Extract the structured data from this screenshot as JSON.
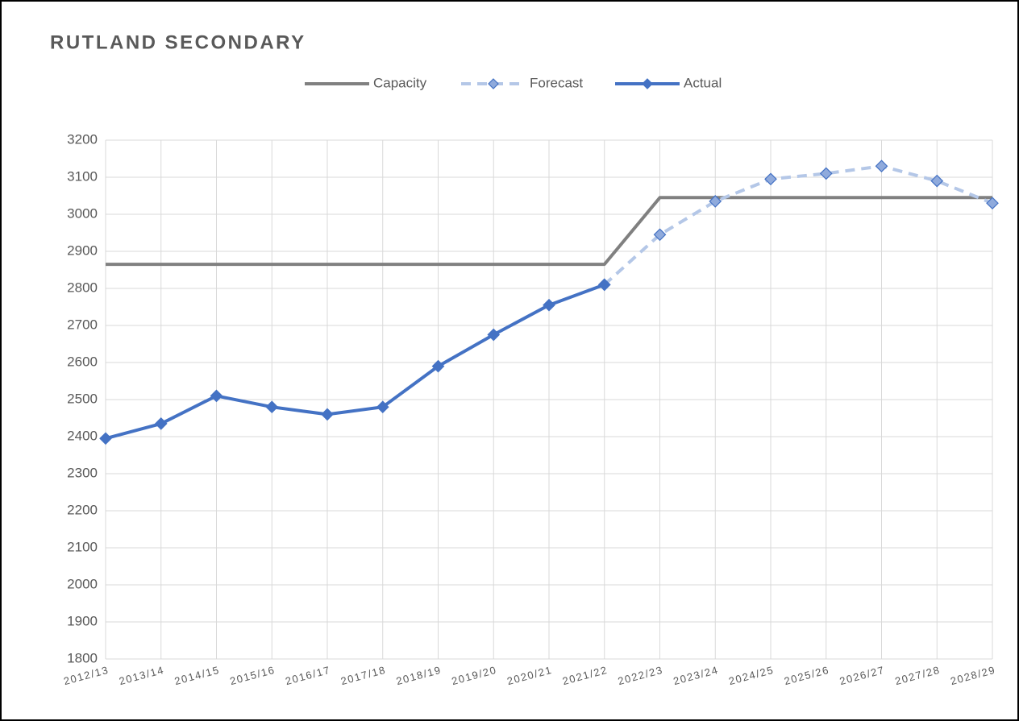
{
  "chart_data": {
    "type": "line",
    "title": "RUTLAND SECONDARY",
    "categories": [
      "2012/13",
      "2013/14",
      "2014/15",
      "2015/16",
      "2016/17",
      "2017/18",
      "2018/19",
      "2019/20",
      "2020/21",
      "2021/22",
      "2022/23",
      "2023/24",
      "2024/25",
      "2025/26",
      "2026/27",
      "2027/28",
      "2028/29"
    ],
    "series": [
      {
        "name": "Capacity",
        "color": "#808080",
        "dashed": false,
        "markers": false,
        "values": [
          2865,
          2865,
          2865,
          2865,
          2865,
          2865,
          2865,
          2865,
          2865,
          2865,
          3045,
          3045,
          3045,
          3045,
          3045,
          3045,
          3045
        ]
      },
      {
        "name": "Forecast",
        "color": "#b4c7e7",
        "dashed": true,
        "markers": true,
        "marker_color": "#8faadc",
        "values": [
          null,
          null,
          null,
          null,
          null,
          null,
          null,
          null,
          null,
          2810,
          2945,
          3035,
          3095,
          3110,
          3130,
          3090,
          3030
        ]
      },
      {
        "name": "Actual",
        "color": "#4472c4",
        "dashed": false,
        "markers": true,
        "marker_color": "#4472c4",
        "values": [
          2395,
          2435,
          2510,
          2480,
          2460,
          2480,
          2590,
          2675,
          2755,
          2810,
          null,
          null,
          null,
          null,
          null,
          null,
          null
        ]
      }
    ],
    "ylim": [
      1800,
      3200
    ],
    "yticks": [
      1800,
      1900,
      2000,
      2100,
      2200,
      2300,
      2400,
      2500,
      2600,
      2700,
      2800,
      2900,
      3000,
      3100,
      3200
    ],
    "grid": true,
    "legend": "top"
  }
}
